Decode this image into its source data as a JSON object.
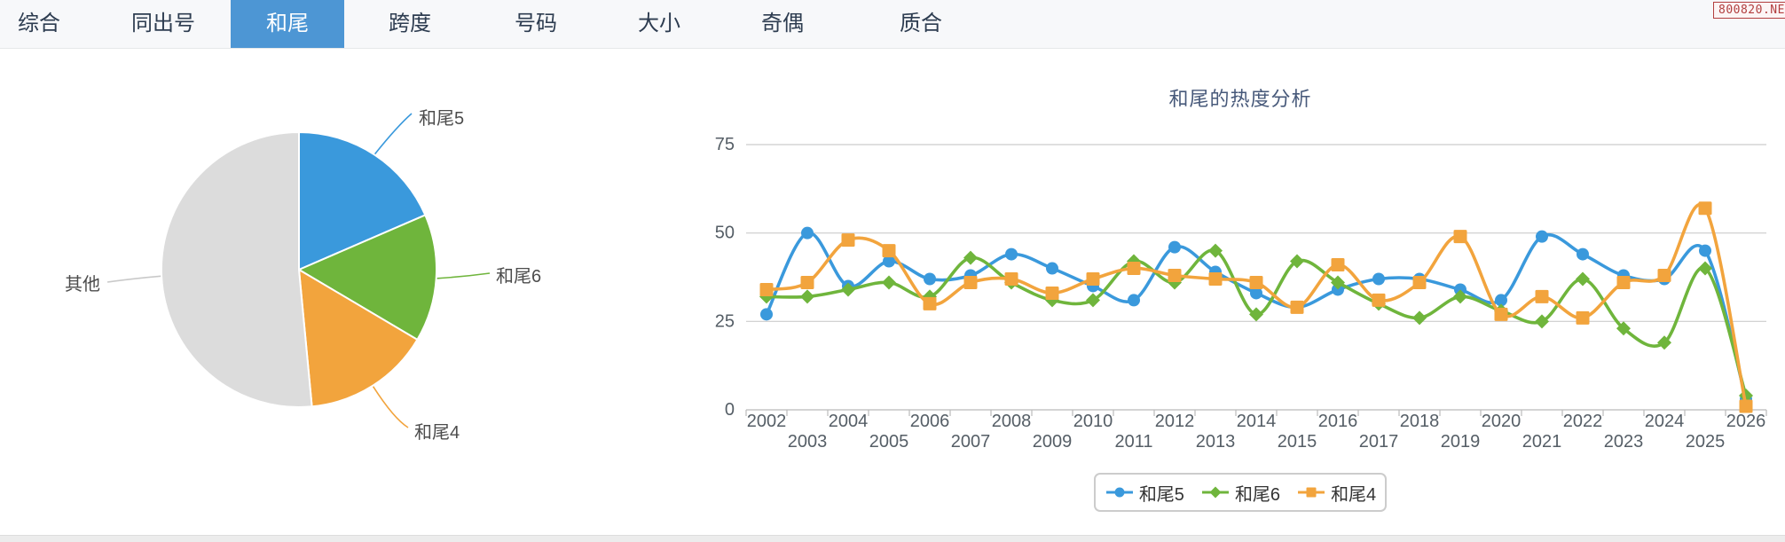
{
  "tabs": {
    "active_tab": "和尾",
    "items": [
      {
        "label": "综合"
      },
      {
        "label": "同出号"
      },
      {
        "label": "和尾"
      },
      {
        "label": "跨度"
      },
      {
        "label": "号码"
      },
      {
        "label": "大小"
      },
      {
        "label": "奇偶"
      },
      {
        "label": "质合"
      }
    ]
  },
  "badge": {
    "text": "800820.NET"
  },
  "colors": {
    "tab_active": "#4d96d4",
    "series_blue": "#3A99DC",
    "series_green": "#6FB53C",
    "series_orange": "#F2A43D",
    "pie_other": "#DCDCDC",
    "axis_text": "#555e66",
    "grid_line": "#cccccc",
    "title_text": "#47597a"
  },
  "chart_data": [
    {
      "type": "pie",
      "title": "",
      "labels": [
        "和尾5",
        "和尾6",
        "和尾4",
        "其他"
      ],
      "values": [
        18.5,
        15.0,
        15.0,
        51.5
      ],
      "unit": "percent",
      "colors": [
        "#3A99DC",
        "#6FB53C",
        "#F2A43D",
        "#DCDCDC"
      ],
      "start_angle_deg_from_north": 0,
      "direction": "clockwise",
      "legend_position": "none"
    },
    {
      "type": "line",
      "title": "和尾的热度分析",
      "x": [
        2002,
        2003,
        2004,
        2005,
        2006,
        2007,
        2008,
        2009,
        2010,
        2011,
        2012,
        2013,
        2014,
        2015,
        2016,
        2017,
        2018,
        2019,
        2020,
        2021,
        2022,
        2023,
        2024,
        2025,
        2026
      ],
      "xlabel": "",
      "ylabel": "",
      "ylim": [
        0,
        75
      ],
      "y_ticks": [
        0,
        25,
        50,
        75
      ],
      "grid": true,
      "smooth": true,
      "legend_position": "bottom",
      "series": [
        {
          "name": "和尾5",
          "color": "#3A99DC",
          "marker": "circle",
          "values": [
            27,
            50,
            35,
            42,
            37,
            38,
            44,
            40,
            35,
            31,
            46,
            39,
            33,
            29,
            34,
            37,
            37,
            34,
            31,
            49,
            44,
            38,
            37,
            45,
            3
          ]
        },
        {
          "name": "和尾6",
          "color": "#6FB53C",
          "marker": "diamond",
          "values": [
            32,
            32,
            34,
            36,
            32,
            43,
            36,
            31,
            31,
            42,
            36,
            45,
            27,
            42,
            36,
            30,
            26,
            32,
            28,
            25,
            37,
            23,
            19,
            40,
            4
          ]
        },
        {
          "name": "和尾4",
          "color": "#F2A43D",
          "marker": "square",
          "values": [
            34,
            36,
            48,
            45,
            30,
            36,
            37,
            33,
            37,
            40,
            38,
            37,
            36,
            29,
            41,
            31,
            36,
            49,
            27,
            32,
            26,
            36,
            38,
            57,
            1
          ]
        }
      ]
    }
  ]
}
